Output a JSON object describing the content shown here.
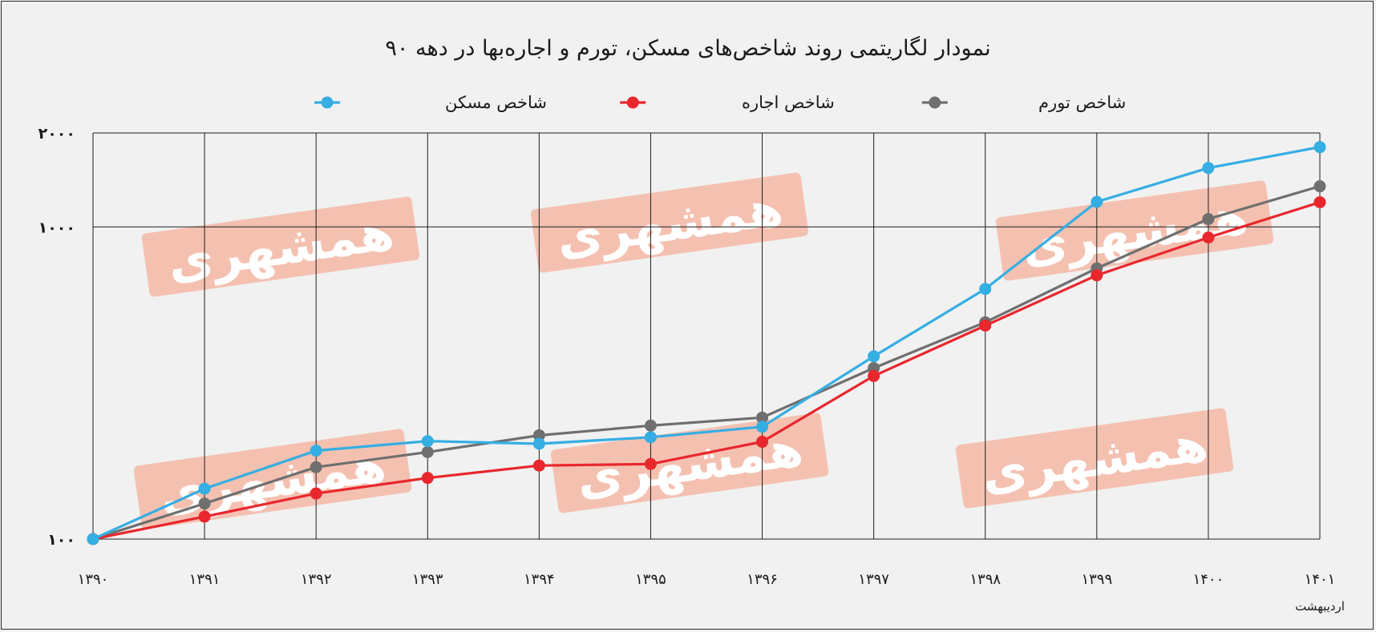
{
  "chart_data": {
    "type": "line",
    "title": "نمودار لگاریتمی روند شاخص‌های مسکن، تورم و اجاره‌بها در دهه ۹۰",
    "xlabel": "",
    "ylabel": "",
    "y_scale": "log",
    "ylim": [
      100,
      2000
    ],
    "y_ticks": [
      100,
      1000,
      2000
    ],
    "y_tick_labels": [
      "۱۰۰",
      "۱۰۰۰",
      "۲۰۰۰"
    ],
    "x": [
      1390,
      1391,
      1392,
      1393,
      1394,
      1395,
      1396,
      1397,
      1398,
      1399,
      1400,
      1401
    ],
    "x_tick_labels": [
      "۱۳۹۰",
      "۱۳۹۱",
      "۱۳۹۲",
      "۱۳۹۳",
      "۱۳۹۴",
      "۱۳۹۵",
      "۱۳۹۶",
      "۱۳۹۷",
      "۱۳۹۸",
      "۱۳۹۹",
      "۱۴۰۰",
      "۱۴۰۱"
    ],
    "x_note": "اردیبهشت",
    "grid": true,
    "legend_position": "top",
    "series": [
      {
        "name": "شاخص مسکن",
        "color": "#35aee3",
        "values": [
          100,
          145,
          192,
          206,
          202,
          212,
          229,
          385,
          633,
          1203,
          1545,
          1802
        ]
      },
      {
        "name": "شاخص اجاره",
        "color": "#e8272d",
        "values": [
          100,
          118,
          140,
          157,
          172,
          174,
          205,
          333,
          483,
          700,
          925,
          1200
        ]
      },
      {
        "name": "شاخص تورم",
        "color": "#6f6f6f",
        "values": [
          100,
          130,
          170,
          190,
          215,
          231,
          245,
          353,
          495,
          737,
          1060,
          1350
        ]
      }
    ]
  },
  "watermark": {
    "text": "همشهری",
    "color": "#f4b8a6"
  }
}
